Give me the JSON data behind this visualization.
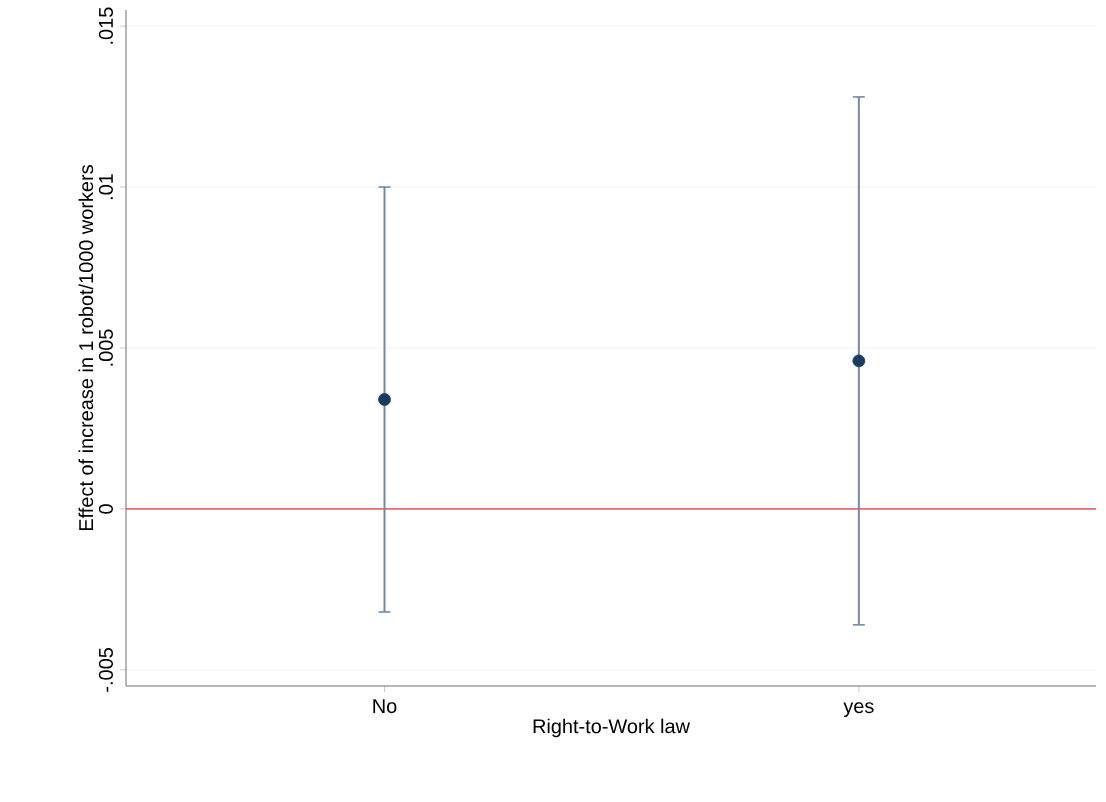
{
  "chart_data": {
    "type": "scatter",
    "xlabel": "Right-to-Work law",
    "ylabel": "Effect of increase in 1 robot/1000 workers",
    "categories": [
      "No",
      "yes"
    ],
    "series": [
      {
        "color": "#1b3b5f",
        "values": [
          0.0034,
          0.0046
        ],
        "errors": [
          [
            -0.0032,
            0.01
          ],
          [
            -0.0036,
            0.0128
          ]
        ]
      }
    ],
    "ylim": [
      -0.0055,
      0.0155
    ],
    "yticks": [
      {
        "value": -0.005,
        "label": "-.005"
      },
      {
        "value": 0,
        "label": "0"
      },
      {
        "value": 0.005,
        "label": ".005"
      },
      {
        "value": 0.01,
        "label": ".01"
      },
      {
        "value": 0.015,
        "label": ".015"
      }
    ],
    "ref_lines": [
      {
        "axis": "y",
        "value": 0,
        "color": "#e06c75"
      }
    ],
    "grid": "y",
    "marker": "circle"
  }
}
